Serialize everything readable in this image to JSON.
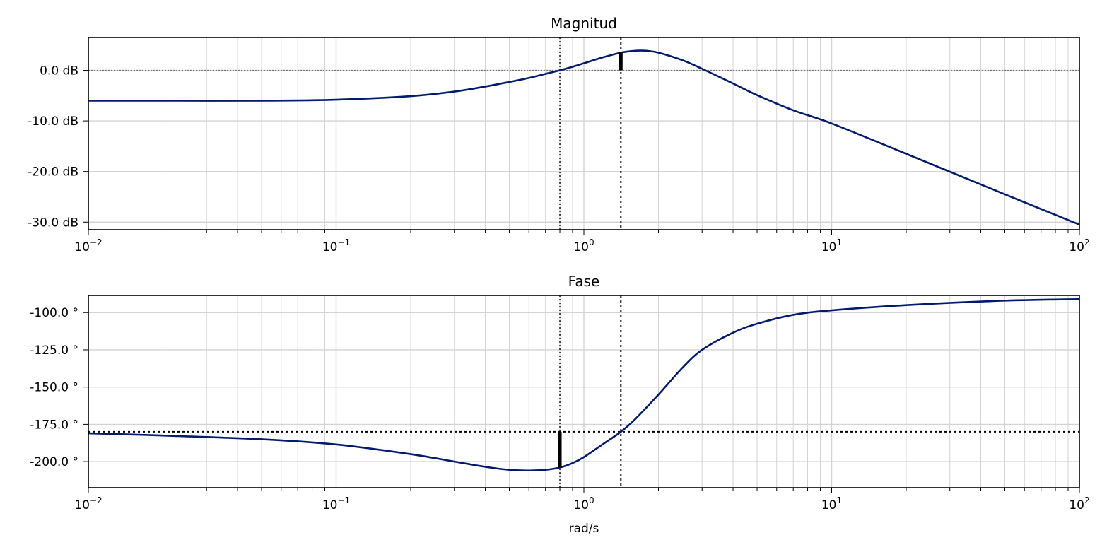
{
  "chart_data": [
    {
      "type": "line",
      "title": "Magnitud",
      "xlabel": "",
      "xscale": "log",
      "xlim": [
        0.01,
        100
      ],
      "ylim": [
        -31.5,
        6.5
      ],
      "yticks": [
        0,
        -10,
        -20,
        -30
      ],
      "ytick_labels": [
        "0.0 dB",
        "-10.0 dB",
        "-20.0 dB",
        "-30.0 dB"
      ],
      "xtick_labels": [
        {
          "base": "10",
          "exp": "−2"
        },
        {
          "base": "10",
          "exp": "−1"
        },
        {
          "base": "10",
          "exp": "0"
        },
        {
          "base": "10",
          "exp": "1"
        },
        {
          "base": "10",
          "exp": "2"
        }
      ],
      "grid": true,
      "line_color": "#001a70",
      "series": [
        {
          "x": [
            0.01,
            0.02,
            0.05,
            0.1,
            0.2,
            0.3,
            0.4,
            0.5,
            0.6,
            0.7,
            0.8,
            0.9,
            1.0,
            1.2,
            1.41,
            1.6,
            1.7,
            1.8,
            2.0,
            2.5,
            3.0,
            4.0,
            5.0,
            7.0,
            10.0,
            20.0,
            50.0,
            100.0
          ],
          "y": [
            -6.0,
            -6.0,
            -6.0,
            -5.8,
            -5.1,
            -4.2,
            -3.2,
            -2.3,
            -1.5,
            -0.7,
            0.0,
            0.7,
            1.4,
            2.6,
            3.5,
            3.85,
            3.9,
            3.85,
            3.5,
            2.0,
            0.3,
            -2.6,
            -4.9,
            -7.9,
            -10.5,
            -16.5,
            -24.5,
            -30.5
          ]
        }
      ],
      "reference_lines": [
        {
          "orientation": "horizontal",
          "y": 0
        },
        {
          "orientation": "vertical",
          "x": 0.8
        },
        {
          "orientation": "vertical",
          "x": 1.41
        }
      ],
      "margin_marker": {
        "x": 1.41,
        "from": 0,
        "to": 3.6
      }
    },
    {
      "type": "line",
      "title": "Fase",
      "xlabel": "rad/s",
      "xscale": "log",
      "xlim": [
        0.01,
        100
      ],
      "ylim": [
        -217.5,
        -88.5
      ],
      "yticks": [
        -100,
        -125,
        -150,
        -175,
        -200
      ],
      "ytick_labels": [
        "-100.0 °",
        "-125.0 °",
        "-150.0 °",
        "-175.0 °",
        "-200.0 °"
      ],
      "xtick_labels": [
        {
          "base": "10",
          "exp": "−2"
        },
        {
          "base": "10",
          "exp": "−1"
        },
        {
          "base": "10",
          "exp": "0"
        },
        {
          "base": "10",
          "exp": "1"
        },
        {
          "base": "10",
          "exp": "2"
        }
      ],
      "grid": true,
      "line_color": "#001a70",
      "series": [
        {
          "x": [
            0.01,
            0.02,
            0.05,
            0.1,
            0.2,
            0.3,
            0.4,
            0.5,
            0.6,
            0.7,
            0.8,
            0.9,
            1.0,
            1.2,
            1.41,
            1.6,
            2.0,
            2.5,
            3.0,
            4.0,
            5.0,
            7.0,
            10.0,
            20.0,
            50.0,
            100.0
          ],
          "y": [
            -181.0,
            -182.5,
            -185.0,
            -188.5,
            -195.0,
            -200.0,
            -203.5,
            -205.5,
            -206.0,
            -205.5,
            -204.0,
            -201.0,
            -197.0,
            -188.0,
            -180.0,
            -172.0,
            -155.0,
            -137.0,
            -125.0,
            -113.5,
            -107.5,
            -101.5,
            -98.5,
            -95.0,
            -92.0,
            -91.0
          ]
        }
      ],
      "reference_lines": [
        {
          "orientation": "horizontal",
          "y": -180
        },
        {
          "orientation": "vertical",
          "x": 0.8
        },
        {
          "orientation": "vertical",
          "x": 1.41
        }
      ],
      "margin_marker": {
        "x": 0.8,
        "from": -180,
        "to": -204
      }
    }
  ]
}
